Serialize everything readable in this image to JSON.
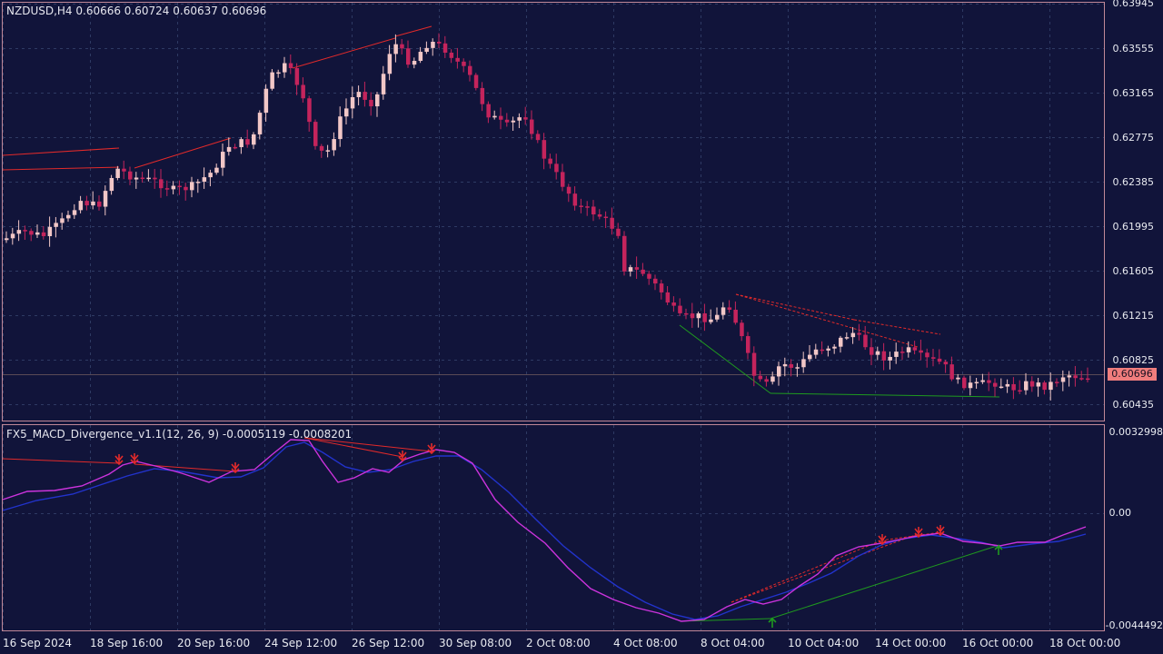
{
  "main_panel": {
    "symbol_label": "NZDUSD,H4  0.60666 0.60724 0.60637 0.60696",
    "current_price": "0.60696",
    "price_axis": [
      "0.63945",
      "0.63555",
      "0.63165",
      "0.62775",
      "0.62385",
      "0.61995",
      "0.61605",
      "0.61215",
      "0.60825",
      "0.60435"
    ]
  },
  "indicator_panel": {
    "label": "FX5_MACD_Divergence_v1.1(12, 26, 9) -0.0005119 -0.0008201",
    "axis": [
      "0.0032998",
      "0.00",
      "-0.0044492"
    ]
  },
  "time_axis": [
    "16 Sep 2024",
    "18 Sep 16:00",
    "20 Sep 16:00",
    "24 Sep 12:00",
    "26 Sep 12:00",
    "30 Sep 08:00",
    "2 Oct 08:00",
    "4 Oct 08:00",
    "8 Oct 04:00",
    "10 Oct 04:00",
    "14 Oct 00:00",
    "16 Oct 00:00",
    "18 Oct 00:00"
  ],
  "colors": {
    "background": "#11143a",
    "bull_candle": "#f2c7c7",
    "bear_candle": "#c4245c",
    "grid": "#2e3a63",
    "border": "#c08898",
    "macd_line": "#cc33dd",
    "signal_line": "#2233cc",
    "bearish_divergence": "#e22a2a",
    "bullish_divergence": "#1f9a1f"
  }
}
